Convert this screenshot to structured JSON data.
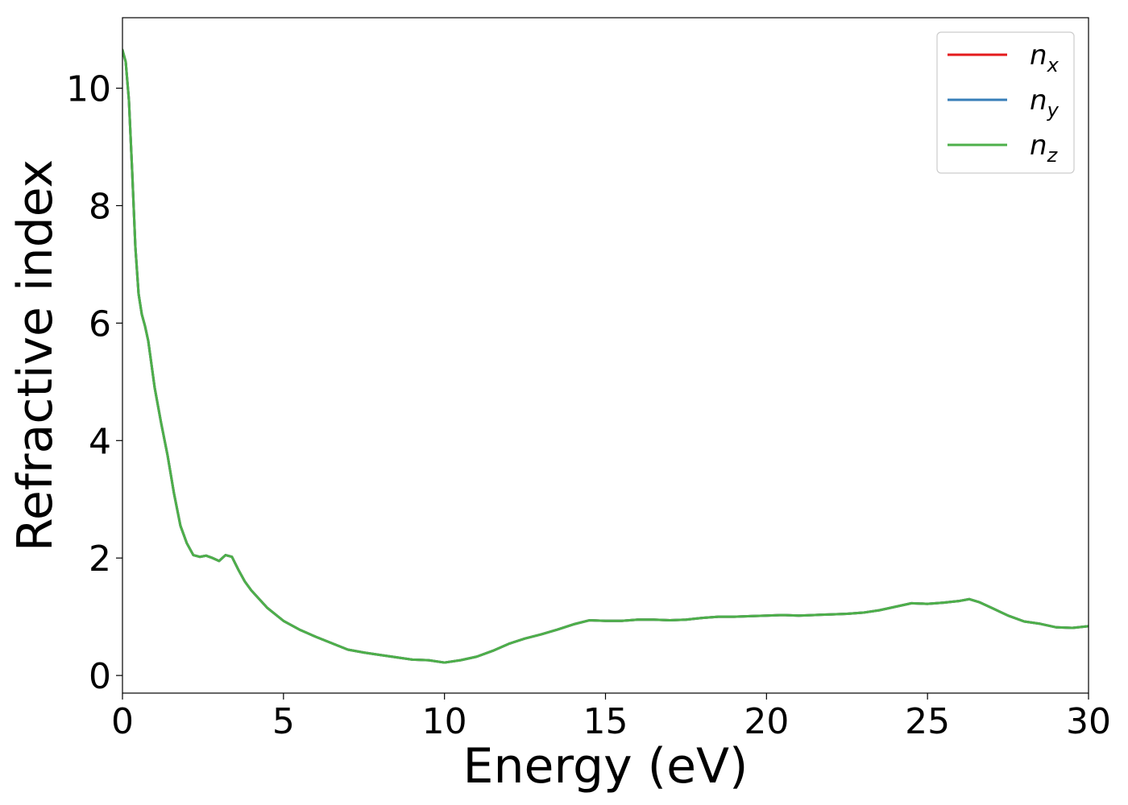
{
  "chart_data": {
    "type": "line",
    "title": "",
    "xlabel": "Energy (eV)",
    "ylabel": "Refractive index",
    "xlim": [
      0,
      30
    ],
    "ylim": [
      -0.3,
      11.2
    ],
    "xticks": [
      0,
      5,
      10,
      15,
      20,
      25,
      30
    ],
    "yticks": [
      0,
      2,
      4,
      6,
      8,
      10
    ],
    "grid": false,
    "legend_position": "top-right",
    "x": [
      0,
      0.1,
      0.2,
      0.3,
      0.4,
      0.5,
      0.6,
      0.7,
      0.8,
      0.9,
      1.0,
      1.2,
      1.4,
      1.6,
      1.8,
      2.0,
      2.2,
      2.4,
      2.6,
      2.8,
      3.0,
      3.2,
      3.4,
      3.6,
      3.8,
      4.0,
      4.5,
      5.0,
      5.5,
      6.0,
      6.5,
      7.0,
      7.5,
      8.0,
      8.5,
      9.0,
      9.5,
      10.0,
      10.5,
      11.0,
      11.5,
      12.0,
      12.5,
      13.0,
      13.5,
      14.0,
      14.5,
      15.0,
      15.5,
      16.0,
      16.5,
      17.0,
      17.5,
      18.0,
      18.5,
      19.0,
      19.5,
      20.0,
      20.5,
      21.0,
      21.5,
      22.0,
      22.5,
      23.0,
      23.5,
      24.0,
      24.5,
      25.0,
      25.5,
      26.0,
      26.3,
      26.6,
      27.0,
      27.5,
      28.0,
      28.5,
      29.0,
      29.5,
      30.0
    ],
    "series": [
      {
        "name": "n_x",
        "label_base": "n",
        "label_sub": "x",
        "color": "#e41a1c",
        "values": [
          10.65,
          10.45,
          9.8,
          8.6,
          7.3,
          6.5,
          6.15,
          5.95,
          5.7,
          5.3,
          4.9,
          4.3,
          3.75,
          3.1,
          2.55,
          2.25,
          2.05,
          2.02,
          2.04,
          2.0,
          1.95,
          2.05,
          2.02,
          1.8,
          1.6,
          1.45,
          1.15,
          0.93,
          0.78,
          0.66,
          0.55,
          0.44,
          0.39,
          0.35,
          0.31,
          0.27,
          0.26,
          0.22,
          0.26,
          0.32,
          0.42,
          0.54,
          0.63,
          0.7,
          0.78,
          0.87,
          0.94,
          0.93,
          0.93,
          0.95,
          0.95,
          0.94,
          0.95,
          0.98,
          1.0,
          1.0,
          1.01,
          1.02,
          1.03,
          1.02,
          1.03,
          1.04,
          1.05,
          1.07,
          1.11,
          1.17,
          1.23,
          1.22,
          1.24,
          1.27,
          1.3,
          1.25,
          1.15,
          1.02,
          0.92,
          0.88,
          0.82,
          0.81,
          0.84
        ]
      },
      {
        "name": "n_y",
        "label_base": "n",
        "label_sub": "y",
        "color": "#377eb8",
        "values": [
          10.65,
          10.45,
          9.8,
          8.6,
          7.3,
          6.5,
          6.15,
          5.95,
          5.7,
          5.3,
          4.9,
          4.3,
          3.75,
          3.1,
          2.55,
          2.25,
          2.05,
          2.02,
          2.04,
          2.0,
          1.95,
          2.05,
          2.02,
          1.8,
          1.6,
          1.45,
          1.15,
          0.93,
          0.78,
          0.66,
          0.55,
          0.44,
          0.39,
          0.35,
          0.31,
          0.27,
          0.26,
          0.22,
          0.26,
          0.32,
          0.42,
          0.54,
          0.63,
          0.7,
          0.78,
          0.87,
          0.94,
          0.93,
          0.93,
          0.95,
          0.95,
          0.94,
          0.95,
          0.98,
          1.0,
          1.0,
          1.01,
          1.02,
          1.03,
          1.02,
          1.03,
          1.04,
          1.05,
          1.07,
          1.11,
          1.17,
          1.23,
          1.22,
          1.24,
          1.27,
          1.3,
          1.25,
          1.15,
          1.02,
          0.92,
          0.88,
          0.82,
          0.81,
          0.84
        ]
      },
      {
        "name": "n_z",
        "label_base": "n",
        "label_sub": "z",
        "color": "#4daf4a",
        "values": [
          10.65,
          10.45,
          9.8,
          8.6,
          7.3,
          6.5,
          6.15,
          5.95,
          5.7,
          5.3,
          4.9,
          4.3,
          3.75,
          3.1,
          2.55,
          2.25,
          2.05,
          2.02,
          2.04,
          2.0,
          1.95,
          2.05,
          2.02,
          1.8,
          1.6,
          1.45,
          1.15,
          0.93,
          0.78,
          0.66,
          0.55,
          0.44,
          0.39,
          0.35,
          0.31,
          0.27,
          0.26,
          0.22,
          0.26,
          0.32,
          0.42,
          0.54,
          0.63,
          0.7,
          0.78,
          0.87,
          0.94,
          0.93,
          0.93,
          0.95,
          0.95,
          0.94,
          0.95,
          0.98,
          1.0,
          1.0,
          1.01,
          1.02,
          1.03,
          1.02,
          1.03,
          1.04,
          1.05,
          1.07,
          1.11,
          1.17,
          1.23,
          1.22,
          1.24,
          1.27,
          1.3,
          1.25,
          1.15,
          1.02,
          0.92,
          0.88,
          0.82,
          0.81,
          0.84
        ]
      }
    ]
  }
}
